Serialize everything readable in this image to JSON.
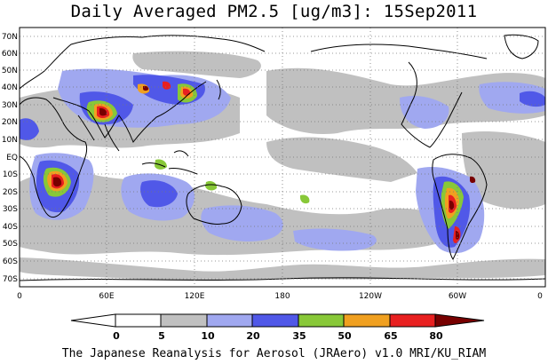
{
  "title": "Daily Averaged PM2.5 [ug/m3]: 15Sep2011",
  "credit": "The Japanese Reanalysis for Aerosol (JRAero) v1.0 MRI/KU_RIAM",
  "map": {
    "projection": "equirectangular",
    "lon_range": [
      0,
      360
    ],
    "lat_range": [
      -75,
      75
    ],
    "grid": "dotted",
    "lat_labels": [
      "70N",
      "60N",
      "50N",
      "40N",
      "30N",
      "20N",
      "10N",
      "EQ",
      "10S",
      "20S",
      "30S",
      "40S",
      "50S",
      "60S",
      "70S"
    ],
    "lat_values": [
      70,
      60,
      50,
      40,
      30,
      20,
      10,
      0,
      -10,
      -20,
      -30,
      -40,
      -50,
      -60,
      -70
    ],
    "lon_labels": [
      "0",
      "60E",
      "120E",
      "180",
      "120W",
      "60W",
      "0"
    ],
    "lon_values": [
      0,
      60,
      120,
      180,
      240,
      300,
      360
    ]
  },
  "colorbar": {
    "labels": [
      "0",
      "5",
      "10",
      "20",
      "35",
      "50",
      "65",
      "80"
    ],
    "bins": [
      {
        "range": "<0",
        "color": "#ffffff"
      },
      {
        "range": "0-5",
        "color": "#ffffff"
      },
      {
        "range": "5-10",
        "color": "#c0c0c0"
      },
      {
        "range": "10-20",
        "color": "#a0a8f0"
      },
      {
        "range": "20-35",
        "color": "#5058e8"
      },
      {
        "range": "35-50",
        "color": "#88c838"
      },
      {
        "range": "50-65",
        "color": "#f0a020"
      },
      {
        "range": "65-80",
        "color": "#e82020"
      },
      {
        "range": ">80",
        "color": "#780000"
      }
    ]
  }
}
